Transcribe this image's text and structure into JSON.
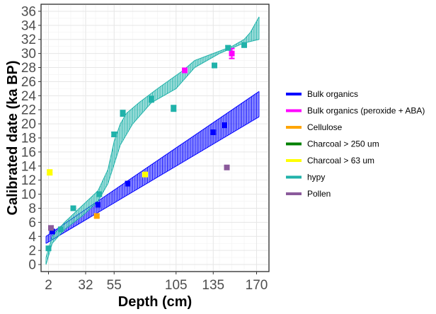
{
  "chart_data": {
    "type": "scatter",
    "xlabel": "Depth (cm)",
    "ylabel": "Calibrated date (ka BP)",
    "xlim": [
      -4,
      180
    ],
    "ylim": [
      -1,
      37
    ],
    "x_ticks": [
      2,
      32,
      55,
      105,
      135,
      170
    ],
    "y_ticks": [
      0,
      2,
      4,
      6,
      8,
      10,
      12,
      14,
      16,
      18,
      20,
      22,
      24,
      26,
      28,
      30,
      32,
      34,
      36
    ],
    "grid": true,
    "legend_position": "right",
    "legend": [
      {
        "name": "Bulk organics",
        "color": "#0000ff"
      },
      {
        "name": "Bulk organics (peroxide + ABA)",
        "color": "#ff00ff"
      },
      {
        "name": "Cellulose",
        "color": "#ffa500"
      },
      {
        "name": "Charcoal > 250 um",
        "color": "#008000"
      },
      {
        "name": "Charcoal > 63 um",
        "color": "#ffff00"
      },
      {
        "name": "hypy",
        "color": "#20b2aa"
      },
      {
        "name": "Pollen",
        "color": "#8b5a9b"
      }
    ],
    "age_models": [
      {
        "name": "Bulk organics",
        "color": "#0000ff",
        "x_start": 0,
        "x_end": 172,
        "x_step": 1,
        "lower": [
          [
            0,
            3.0
          ],
          [
            172,
            21.0
          ]
        ],
        "upper": [
          [
            0,
            4.0
          ],
          [
            172,
            24.6
          ]
        ]
      },
      {
        "name": "hypy",
        "color": "#20b2aa",
        "x_start": 0,
        "x_end": 172,
        "x_step": 1,
        "lower": [
          [
            0,
            0.0
          ],
          [
            5,
            3.0
          ],
          [
            15,
            5.0
          ],
          [
            30,
            7.0
          ],
          [
            42,
            9.0
          ],
          [
            50,
            11.5
          ],
          [
            60,
            17.0
          ],
          [
            70,
            20.0
          ],
          [
            85,
            23.0
          ],
          [
            105,
            25.0
          ],
          [
            120,
            28.0
          ],
          [
            140,
            30.0
          ],
          [
            160,
            31.5
          ],
          [
            172,
            32.0
          ]
        ],
        "upper": [
          [
            0,
            1.0
          ],
          [
            5,
            4.0
          ],
          [
            15,
            6.0
          ],
          [
            30,
            8.5
          ],
          [
            42,
            10.5
          ],
          [
            50,
            13.5
          ],
          [
            55,
            17.5
          ],
          [
            60,
            20.0
          ],
          [
            65,
            21.5
          ],
          [
            75,
            23.0
          ],
          [
            90,
            25.0
          ],
          [
            110,
            27.5
          ],
          [
            120,
            29.0
          ],
          [
            135,
            30.0
          ],
          [
            150,
            31.0
          ],
          [
            160,
            32.0
          ],
          [
            165,
            33.0
          ],
          [
            172,
            35.2
          ]
        ]
      }
    ],
    "points": [
      {
        "series": "Bulk organics",
        "x": 5,
        "y": 4.7,
        "err": 0.2
      },
      {
        "series": "Bulk organics",
        "x": 42,
        "y": 8.5,
        "err": 0.2
      },
      {
        "series": "Bulk organics",
        "x": 66,
        "y": 11.5,
        "err": 0.25
      },
      {
        "series": "Bulk organics",
        "x": 135,
        "y": 18.8,
        "err": 0.25
      },
      {
        "series": "Bulk organics",
        "x": 144,
        "y": 19.8,
        "err": 0.3
      },
      {
        "series": "Bulk organics (peroxide + ABA)",
        "x": 112,
        "y": 27.6,
        "err": 0.2
      },
      {
        "series": "Bulk organics (peroxide + ABA)",
        "x": 150,
        "y": 30.0,
        "err": 0.7
      },
      {
        "series": "Cellulose",
        "x": 41,
        "y": 6.9,
        "err": 0.2
      },
      {
        "series": "Charcoal > 63 um",
        "x": 3,
        "y": 13.1,
        "err": 0.35
      },
      {
        "series": "Charcoal > 63 um",
        "x": 80,
        "y": 12.8,
        "err": 0.25
      },
      {
        "series": "hypy",
        "x": 2,
        "y": 2.3,
        "err": 0.2
      },
      {
        "series": "hypy",
        "x": 12,
        "y": 5.0,
        "err": 0.2
      },
      {
        "series": "hypy",
        "x": 22,
        "y": 8.0,
        "err": 0.2
      },
      {
        "series": "hypy",
        "x": 43,
        "y": 10.0,
        "err": 0.3
      },
      {
        "series": "hypy",
        "x": 55,
        "y": 18.5,
        "err": 0.3
      },
      {
        "series": "hypy",
        "x": 62,
        "y": 21.5,
        "err": 0.4
      },
      {
        "series": "hypy",
        "x": 85,
        "y": 23.5,
        "err": 0.4
      },
      {
        "series": "hypy",
        "x": 103,
        "y": 22.2,
        "err": 0.4
      },
      {
        "series": "hypy",
        "x": 136,
        "y": 28.3,
        "err": 0.3
      },
      {
        "series": "hypy",
        "x": 147,
        "y": 30.8,
        "err": 0.3
      },
      {
        "series": "hypy",
        "x": 160,
        "y": 31.2,
        "err": 0.3
      },
      {
        "series": "Pollen",
        "x": 4,
        "y": 5.2,
        "err": 0.15
      },
      {
        "series": "Pollen",
        "x": 146,
        "y": 13.8,
        "err": 0.2
      }
    ]
  }
}
